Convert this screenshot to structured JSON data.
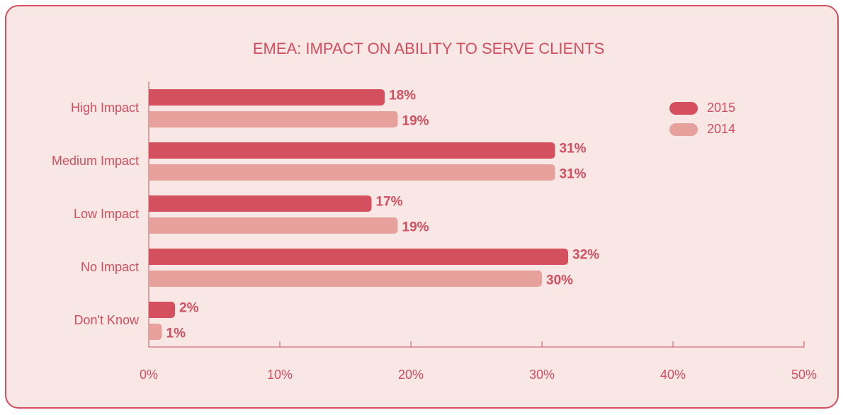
{
  "chart_data": {
    "type": "bar",
    "orientation": "horizontal",
    "title": "EMEA: IMPACT ON ABILITY TO SERVE CLIENTS",
    "categories": [
      "High Impact",
      "Medium Impact",
      "Low Impact",
      "No Impact",
      "Don't Know"
    ],
    "series": [
      {
        "name": "2015",
        "color": "#d4505f",
        "values": [
          18,
          31,
          17,
          32,
          2
        ],
        "value_labels": [
          "18%",
          "31%",
          "17%",
          "32%",
          "2%"
        ]
      },
      {
        "name": "2014",
        "color": "#e6a19d",
        "values": [
          19,
          31,
          19,
          30,
          1
        ],
        "value_labels": [
          "19%",
          "31%",
          "19%",
          "30%",
          "1%"
        ]
      }
    ],
    "xlim": [
      0,
      50
    ],
    "xticks": [
      {
        "value": 0,
        "label": "0%"
      },
      {
        "value": 10,
        "label": "10%"
      },
      {
        "value": 20,
        "label": "20%"
      },
      {
        "value": 30,
        "label": "30%"
      },
      {
        "value": 40,
        "label": "40%"
      },
      {
        "value": 50,
        "label": "50%"
      }
    ],
    "legend": "upper right"
  }
}
